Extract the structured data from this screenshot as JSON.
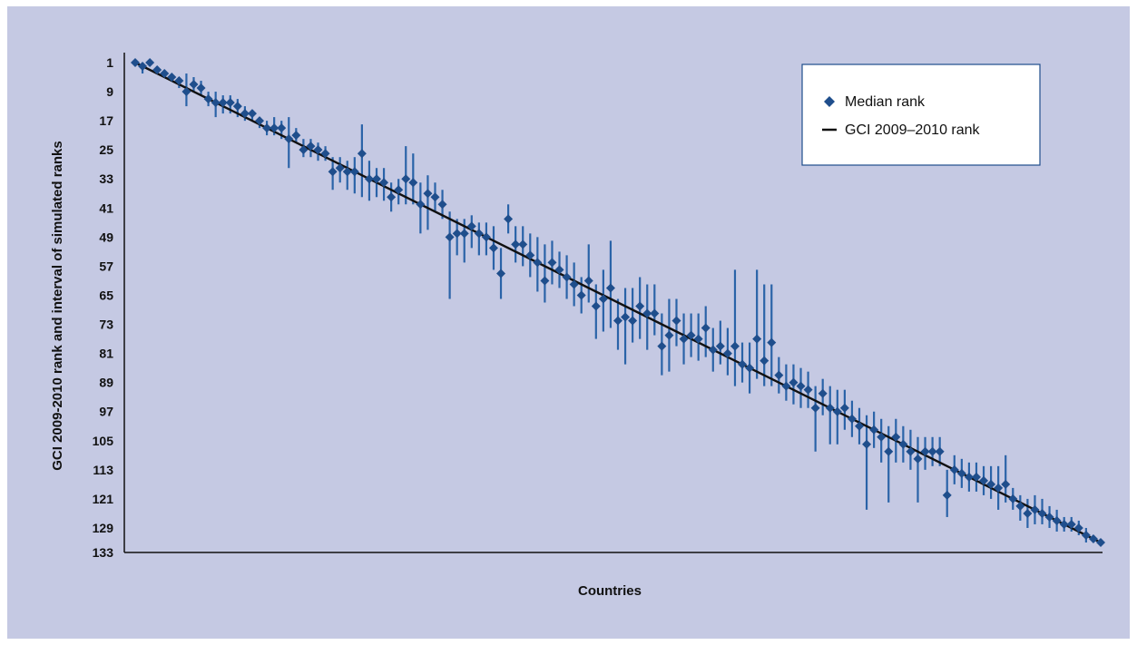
{
  "chart_data": {
    "type": "scatter",
    "title": "",
    "xlabel": "Countries",
    "ylabel": "GCI 2009-2010 rank and interval of simulated ranks",
    "ylim": [
      1,
      133
    ],
    "y_inverted": true,
    "y_ticks": [
      1,
      9,
      17,
      25,
      33,
      41,
      49,
      57,
      65,
      73,
      81,
      89,
      97,
      105,
      113,
      121,
      129,
      133
    ],
    "grid": false,
    "legend_position": "top-right",
    "colors": {
      "marker": "#1f4e8c",
      "errorbar": "#2a63a8",
      "line": "#111111",
      "background": "#c5c9e3"
    },
    "series": [
      {
        "name": "Median rank",
        "kind": "scatter-with-interval",
        "points": [
          {
            "x": 1,
            "y": 1,
            "lo": 1,
            "hi": 2
          },
          {
            "x": 2,
            "y": 2,
            "lo": 1,
            "hi": 4
          },
          {
            "x": 3,
            "y": 1,
            "lo": 1,
            "hi": 2
          },
          {
            "x": 4,
            "y": 3,
            "lo": 2,
            "hi": 4
          },
          {
            "x": 5,
            "y": 4,
            "lo": 3,
            "hi": 5
          },
          {
            "x": 6,
            "y": 5,
            "lo": 4,
            "hi": 6
          },
          {
            "x": 7,
            "y": 6,
            "lo": 5,
            "hi": 8
          },
          {
            "x": 8,
            "y": 9,
            "lo": 4,
            "hi": 13
          },
          {
            "x": 9,
            "y": 7,
            "lo": 5,
            "hi": 9
          },
          {
            "x": 10,
            "y": 8,
            "lo": 6,
            "hi": 10
          },
          {
            "x": 11,
            "y": 11,
            "lo": 9,
            "hi": 13
          },
          {
            "x": 12,
            "y": 12,
            "lo": 9,
            "hi": 16
          },
          {
            "x": 13,
            "y": 12,
            "lo": 10,
            "hi": 15
          },
          {
            "x": 14,
            "y": 12,
            "lo": 10,
            "hi": 15
          },
          {
            "x": 15,
            "y": 13,
            "lo": 11,
            "hi": 16
          },
          {
            "x": 16,
            "y": 15,
            "lo": 13,
            "hi": 17
          },
          {
            "x": 17,
            "y": 15,
            "lo": 14,
            "hi": 17
          },
          {
            "x": 18,
            "y": 17,
            "lo": 16,
            "hi": 19
          },
          {
            "x": 19,
            "y": 19,
            "lo": 17,
            "hi": 21
          },
          {
            "x": 20,
            "y": 19,
            "lo": 16,
            "hi": 21
          },
          {
            "x": 21,
            "y": 19,
            "lo": 17,
            "hi": 22
          },
          {
            "x": 22,
            "y": 22,
            "lo": 16,
            "hi": 30
          },
          {
            "x": 23,
            "y": 21,
            "lo": 19,
            "hi": 23
          },
          {
            "x": 24,
            "y": 25,
            "lo": 22,
            "hi": 27
          },
          {
            "x": 25,
            "y": 24,
            "lo": 22,
            "hi": 27
          },
          {
            "x": 26,
            "y": 25,
            "lo": 23,
            "hi": 28
          },
          {
            "x": 27,
            "y": 26,
            "lo": 24,
            "hi": 28
          },
          {
            "x": 28,
            "y": 31,
            "lo": 27,
            "hi": 36
          },
          {
            "x": 29,
            "y": 30,
            "lo": 27,
            "hi": 34
          },
          {
            "x": 30,
            "y": 31,
            "lo": 28,
            "hi": 36
          },
          {
            "x": 31,
            "y": 31,
            "lo": 27,
            "hi": 37
          },
          {
            "x": 32,
            "y": 26,
            "lo": 18,
            "hi": 38
          },
          {
            "x": 33,
            "y": 33,
            "lo": 28,
            "hi": 39
          },
          {
            "x": 34,
            "y": 33,
            "lo": 30,
            "hi": 38
          },
          {
            "x": 35,
            "y": 34,
            "lo": 30,
            "hi": 39
          },
          {
            "x": 36,
            "y": 38,
            "lo": 34,
            "hi": 42
          },
          {
            "x": 37,
            "y": 36,
            "lo": 33,
            "hi": 40
          },
          {
            "x": 38,
            "y": 33,
            "lo": 24,
            "hi": 40
          },
          {
            "x": 39,
            "y": 34,
            "lo": 26,
            "hi": 40
          },
          {
            "x": 40,
            "y": 40,
            "lo": 34,
            "hi": 48
          },
          {
            "x": 41,
            "y": 37,
            "lo": 32,
            "hi": 47
          },
          {
            "x": 42,
            "y": 38,
            "lo": 34,
            "hi": 42
          },
          {
            "x": 43,
            "y": 40,
            "lo": 36,
            "hi": 44
          },
          {
            "x": 44,
            "y": 49,
            "lo": 42,
            "hi": 66
          },
          {
            "x": 45,
            "y": 48,
            "lo": 44,
            "hi": 54
          },
          {
            "x": 46,
            "y": 48,
            "lo": 44,
            "hi": 56
          },
          {
            "x": 47,
            "y": 46,
            "lo": 43,
            "hi": 52
          },
          {
            "x": 48,
            "y": 48,
            "lo": 45,
            "hi": 54
          },
          {
            "x": 49,
            "y": 49,
            "lo": 45,
            "hi": 54
          },
          {
            "x": 50,
            "y": 52,
            "lo": 46,
            "hi": 58
          },
          {
            "x": 51,
            "y": 59,
            "lo": 52,
            "hi": 66
          },
          {
            "x": 52,
            "y": 44,
            "lo": 40,
            "hi": 48
          },
          {
            "x": 53,
            "y": 51,
            "lo": 46,
            "hi": 56
          },
          {
            "x": 54,
            "y": 51,
            "lo": 46,
            "hi": 57
          },
          {
            "x": 55,
            "y": 54,
            "lo": 48,
            "hi": 60
          },
          {
            "x": 56,
            "y": 56,
            "lo": 49,
            "hi": 64
          },
          {
            "x": 57,
            "y": 61,
            "lo": 51,
            "hi": 67
          },
          {
            "x": 58,
            "y": 56,
            "lo": 50,
            "hi": 62
          },
          {
            "x": 59,
            "y": 58,
            "lo": 53,
            "hi": 63
          },
          {
            "x": 60,
            "y": 60,
            "lo": 54,
            "hi": 66
          },
          {
            "x": 61,
            "y": 62,
            "lo": 56,
            "hi": 68
          },
          {
            "x": 62,
            "y": 65,
            "lo": 60,
            "hi": 70
          },
          {
            "x": 63,
            "y": 61,
            "lo": 51,
            "hi": 67
          },
          {
            "x": 64,
            "y": 68,
            "lo": 62,
            "hi": 77
          },
          {
            "x": 65,
            "y": 66,
            "lo": 58,
            "hi": 75
          },
          {
            "x": 66,
            "y": 63,
            "lo": 50,
            "hi": 74
          },
          {
            "x": 67,
            "y": 72,
            "lo": 66,
            "hi": 80
          },
          {
            "x": 68,
            "y": 71,
            "lo": 63,
            "hi": 84
          },
          {
            "x": 69,
            "y": 72,
            "lo": 63,
            "hi": 78
          },
          {
            "x": 70,
            "y": 68,
            "lo": 60,
            "hi": 77
          },
          {
            "x": 71,
            "y": 70,
            "lo": 62,
            "hi": 80
          },
          {
            "x": 72,
            "y": 70,
            "lo": 62,
            "hi": 76
          },
          {
            "x": 73,
            "y": 79,
            "lo": 70,
            "hi": 87
          },
          {
            "x": 74,
            "y": 76,
            "lo": 66,
            "hi": 86
          },
          {
            "x": 75,
            "y": 72,
            "lo": 66,
            "hi": 79
          },
          {
            "x": 76,
            "y": 77,
            "lo": 70,
            "hi": 84
          },
          {
            "x": 77,
            "y": 76,
            "lo": 70,
            "hi": 82
          },
          {
            "x": 78,
            "y": 77,
            "lo": 70,
            "hi": 83
          },
          {
            "x": 79,
            "y": 74,
            "lo": 68,
            "hi": 82
          },
          {
            "x": 80,
            "y": 80,
            "lo": 74,
            "hi": 86
          },
          {
            "x": 81,
            "y": 79,
            "lo": 72,
            "hi": 84
          },
          {
            "x": 82,
            "y": 81,
            "lo": 74,
            "hi": 87
          },
          {
            "x": 83,
            "y": 79,
            "lo": 58,
            "hi": 90
          },
          {
            "x": 84,
            "y": 84,
            "lo": 78,
            "hi": 89
          },
          {
            "x": 85,
            "y": 85,
            "lo": 78,
            "hi": 92
          },
          {
            "x": 86,
            "y": 77,
            "lo": 58,
            "hi": 88
          },
          {
            "x": 87,
            "y": 83,
            "lo": 62,
            "hi": 90
          },
          {
            "x": 88,
            "y": 78,
            "lo": 62,
            "hi": 90
          },
          {
            "x": 89,
            "y": 87,
            "lo": 82,
            "hi": 92
          },
          {
            "x": 90,
            "y": 90,
            "lo": 84,
            "hi": 94
          },
          {
            "x": 91,
            "y": 89,
            "lo": 84,
            "hi": 95
          },
          {
            "x": 92,
            "y": 90,
            "lo": 85,
            "hi": 96
          },
          {
            "x": 93,
            "y": 91,
            "lo": 86,
            "hi": 96
          },
          {
            "x": 94,
            "y": 96,
            "lo": 90,
            "hi": 108
          },
          {
            "x": 95,
            "y": 92,
            "lo": 88,
            "hi": 98
          },
          {
            "x": 96,
            "y": 96,
            "lo": 90,
            "hi": 106
          },
          {
            "x": 97,
            "y": 97,
            "lo": 91,
            "hi": 106
          },
          {
            "x": 98,
            "y": 96,
            "lo": 91,
            "hi": 102
          },
          {
            "x": 99,
            "y": 99,
            "lo": 94,
            "hi": 104
          },
          {
            "x": 100,
            "y": 101,
            "lo": 96,
            "hi": 106
          },
          {
            "x": 101,
            "y": 106,
            "lo": 98,
            "hi": 124
          },
          {
            "x": 102,
            "y": 102,
            "lo": 97,
            "hi": 107
          },
          {
            "x": 103,
            "y": 104,
            "lo": 99,
            "hi": 111
          },
          {
            "x": 104,
            "y": 108,
            "lo": 101,
            "hi": 122
          },
          {
            "x": 105,
            "y": 104,
            "lo": 99,
            "hi": 111
          },
          {
            "x": 106,
            "y": 106,
            "lo": 101,
            "hi": 111
          },
          {
            "x": 107,
            "y": 108,
            "lo": 102,
            "hi": 113
          },
          {
            "x": 108,
            "y": 110,
            "lo": 104,
            "hi": 122
          },
          {
            "x": 109,
            "y": 108,
            "lo": 104,
            "hi": 113
          },
          {
            "x": 110,
            "y": 108,
            "lo": 104,
            "hi": 112
          },
          {
            "x": 111,
            "y": 108,
            "lo": 104,
            "hi": 112
          },
          {
            "x": 112,
            "y": 120,
            "lo": 113,
            "hi": 126
          },
          {
            "x": 113,
            "y": 113,
            "lo": 109,
            "hi": 117
          },
          {
            "x": 114,
            "y": 114,
            "lo": 110,
            "hi": 118
          },
          {
            "x": 115,
            "y": 115,
            "lo": 111,
            "hi": 119
          },
          {
            "x": 116,
            "y": 115,
            "lo": 111,
            "hi": 119
          },
          {
            "x": 117,
            "y": 116,
            "lo": 112,
            "hi": 120
          },
          {
            "x": 118,
            "y": 117,
            "lo": 112,
            "hi": 121
          },
          {
            "x": 119,
            "y": 118,
            "lo": 112,
            "hi": 124
          },
          {
            "x": 120,
            "y": 117,
            "lo": 109,
            "hi": 122
          },
          {
            "x": 121,
            "y": 121,
            "lo": 118,
            "hi": 124
          },
          {
            "x": 122,
            "y": 123,
            "lo": 120,
            "hi": 127
          },
          {
            "x": 123,
            "y": 125,
            "lo": 121,
            "hi": 129
          },
          {
            "x": 124,
            "y": 124,
            "lo": 120,
            "hi": 128
          },
          {
            "x": 125,
            "y": 125,
            "lo": 121,
            "hi": 128
          },
          {
            "x": 126,
            "y": 126,
            "lo": 123,
            "hi": 129
          },
          {
            "x": 127,
            "y": 127,
            "lo": 124,
            "hi": 130
          },
          {
            "x": 128,
            "y": 128,
            "lo": 126,
            "hi": 130
          },
          {
            "x": 129,
            "y": 128,
            "lo": 126,
            "hi": 130
          },
          {
            "x": 130,
            "y": 129,
            "lo": 127,
            "hi": 131
          },
          {
            "x": 131,
            "y": 131,
            "lo": 129,
            "hi": 133
          },
          {
            "x": 132,
            "y": 132,
            "lo": 131,
            "hi": 133
          },
          {
            "x": 133,
            "y": 133,
            "lo": 132,
            "hi": 133
          }
        ]
      },
      {
        "name": "GCI 2009–2010 rank",
        "kind": "line",
        "x": [
          1,
          133
        ],
        "y": [
          1,
          133
        ]
      }
    ],
    "legend": [
      {
        "label": "Median rank",
        "symbol": "diamond"
      },
      {
        "label": "GCI 2009–2010 rank",
        "symbol": "line"
      }
    ]
  }
}
